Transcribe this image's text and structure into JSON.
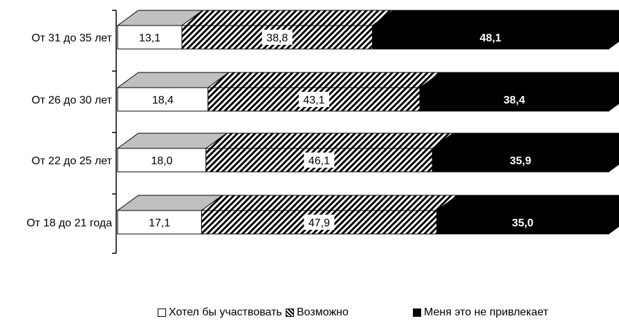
{
  "chart_data": {
    "type": "bar",
    "orientation": "horizontal",
    "stacked": true,
    "percent_stacked": true,
    "three_d": true,
    "categories": [
      "От 31 до 35 лет",
      "От 26 до 30 лет",
      "От 22 до 25 лет",
      "От 18 до 21 года"
    ],
    "series": [
      {
        "name": "Хотел бы участвовать",
        "values": [
          "13,1",
          "18,4",
          "18,0",
          "17,1"
        ],
        "fill": "white"
      },
      {
        "name": "Возможно",
        "values": [
          "38,8",
          "43,1",
          "46,1",
          "47,9"
        ],
        "fill": "hatch"
      },
      {
        "name": "Меня это не привлекает",
        "values": [
          "48,1",
          "38,4",
          "35,9",
          "35,0"
        ],
        "fill": "black"
      }
    ],
    "legend_position": "bottom",
    "grid": false,
    "colors": {
      "white": "#ffffff",
      "black": "#000000",
      "top_face": "#c0c0c0",
      "outline": "#000000"
    }
  }
}
